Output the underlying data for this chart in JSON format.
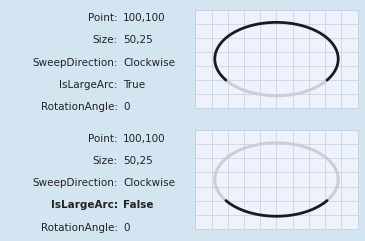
{
  "bg_color": "#d4e5f2",
  "panel_bg": "#eef2fb",
  "grid_color": "#c5cce8",
  "text_color": "#222222",
  "arc_color": "#1a1a1a",
  "shadow_color": "#c0c0c0",
  "fig_width": 3.65,
  "fig_height": 2.41,
  "dpi": 100,
  "rows": [
    {
      "labels": [
        "Point:",
        "Size:",
        "SweepDirection:",
        "IsLargeArc:",
        "RotationAngle:"
      ],
      "values": [
        "100,100",
        "50,25",
        "Clockwise",
        "True",
        "0"
      ],
      "bold_label_idx": -1,
      "is_large_arc": true
    },
    {
      "labels": [
        "Point:",
        "Size:",
        "SweepDirection:",
        "IsLargeArc:",
        "RotationAngle:"
      ],
      "values": [
        "100,100",
        "50,25",
        "Clockwise",
        "False",
        "0"
      ],
      "bold_label_idx": 3,
      "is_large_arc": false
    }
  ]
}
